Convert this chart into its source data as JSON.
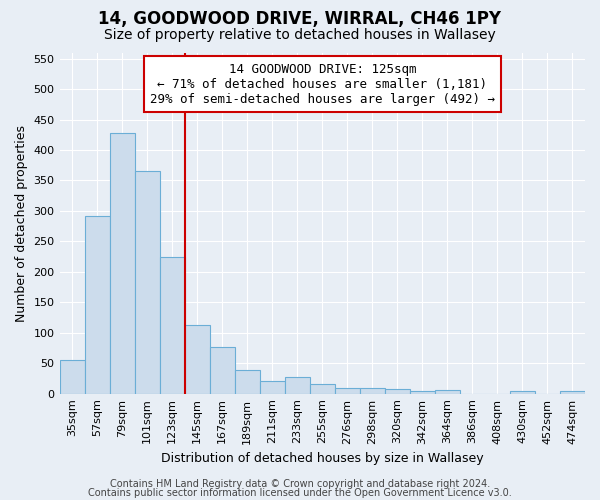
{
  "title1": "14, GOODWOOD DRIVE, WIRRAL, CH46 1PY",
  "title2": "Size of property relative to detached houses in Wallasey",
  "xlabel": "Distribution of detached houses by size in Wallasey",
  "ylabel": "Number of detached properties",
  "bar_labels": [
    "35sqm",
    "57sqm",
    "79sqm",
    "101sqm",
    "123sqm",
    "145sqm",
    "167sqm",
    "189sqm",
    "211sqm",
    "233sqm",
    "255sqm",
    "276sqm",
    "298sqm",
    "320sqm",
    "342sqm",
    "364sqm",
    "386sqm",
    "408sqm",
    "430sqm",
    "452sqm",
    "474sqm"
  ],
  "bar_heights": [
    55,
    292,
    428,
    365,
    225,
    113,
    77,
    39,
    20,
    28,
    16,
    10,
    10,
    8,
    5,
    6,
    0,
    0,
    5,
    0,
    5
  ],
  "bar_color": "#ccdcec",
  "bar_edgecolor": "#6baed6",
  "bar_linewidth": 0.8,
  "vline_x": 4.5,
  "vline_color": "#cc0000",
  "ylim": [
    0,
    560
  ],
  "yticks": [
    0,
    50,
    100,
    150,
    200,
    250,
    300,
    350,
    400,
    450,
    500,
    550
  ],
  "annotation_text": "14 GOODWOOD DRIVE: 125sqm\n← 71% of detached houses are smaller (1,181)\n29% of semi-detached houses are larger (492) →",
  "annotation_box_facecolor": "#ffffff",
  "annotation_box_edgecolor": "#cc0000",
  "background_color": "#e8eef5",
  "grid_color": "#ffffff",
  "footer1": "Contains HM Land Registry data © Crown copyright and database right 2024.",
  "footer2": "Contains public sector information licensed under the Open Government Licence v3.0.",
  "title1_fontsize": 12,
  "title2_fontsize": 10,
  "xlabel_fontsize": 9,
  "ylabel_fontsize": 9,
  "tick_fontsize": 8,
  "annotation_fontsize": 9,
  "footer_fontsize": 7
}
